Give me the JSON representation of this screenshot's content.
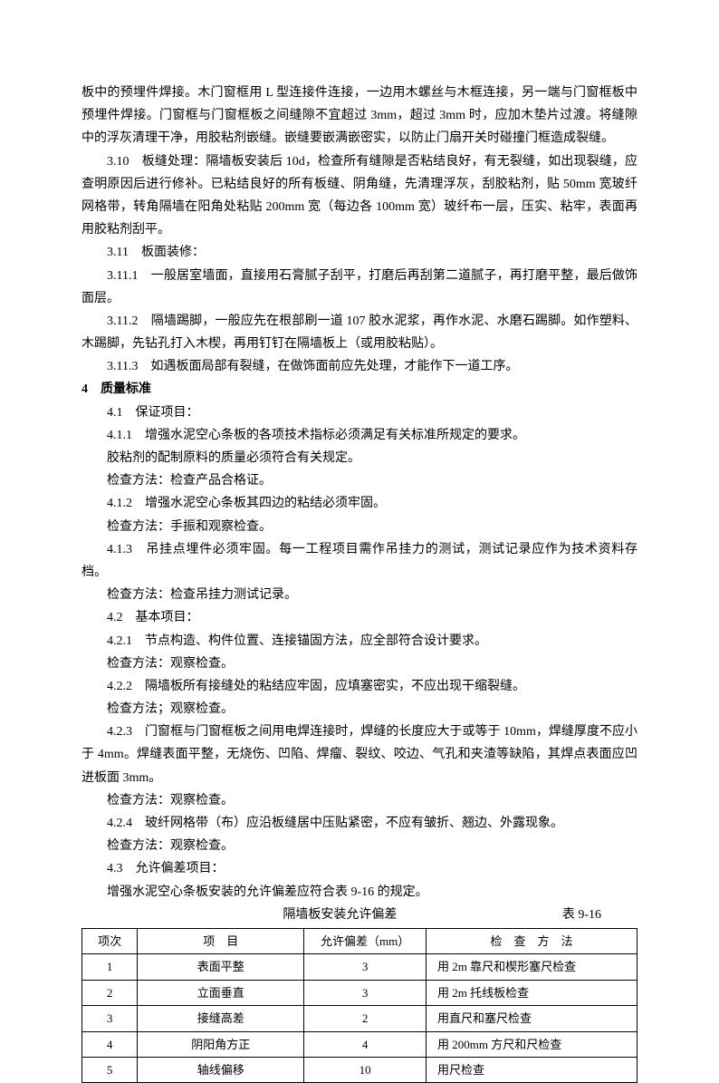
{
  "paragraphs": [
    {
      "text": "板中的预埋件焊接。木门窗框用 L 型连接件连接，一边用木螺丝与木框连接，另一端与门窗框板中预埋件焊接。门窗框与门窗框板之间缝隙不宜超过 3mm，超过 3mm 时，应加木垫片过渡。将缝隙中的浮灰清理干净，用胶粘剂嵌缝。嵌缝要嵌满嵌密实，以防止门扇开关时碰撞门框造成裂缝。",
      "indent": false
    },
    {
      "text": "3.10　板缝处理：隔墙板安装后 10d，检查所有缝隙是否粘结良好，有无裂缝，如出现裂缝，应查明原因后进行修补。已粘结良好的所有板缝、阴角缝，先清理浮灰，刮胶粘剂，贴 50mm 宽玻纤网格带，转角隔墙在阳角处粘贴 200mm 宽（每边各 100mm 宽）玻纤布一层，压实、粘牢，表面再用胶粘剂刮平。",
      "indent": true
    },
    {
      "text": "3.11　板面装修：",
      "indent": true
    },
    {
      "text": "3.11.1　一般居室墙面，直接用石膏腻子刮平，打磨后再刮第二道腻子，再打磨平整，最后做饰面层。",
      "indent": true
    },
    {
      "text": "3.11.2　隔墙踢脚，一般应先在根部刷一道 107 胶水泥浆，再作水泥、水磨石踢脚。如作塑料、木踢脚，先钻孔打入木楔，再用钉钉在隔墙板上（或用胶粘贴）。",
      "indent": true
    },
    {
      "text": "3.11.3　如遇板面局部有裂缝，在做饰面前应先处理，才能作下一道工序。",
      "indent": true
    },
    {
      "text": "4　质量标准",
      "indent": false,
      "bold": true
    },
    {
      "text": "4.1　保证项目：",
      "indent": true
    },
    {
      "text": "4.1.1　增强水泥空心条板的各项技术指标必须满足有关标准所规定的要求。",
      "indent": true
    },
    {
      "text": "胶粘剂的配制原料的质量必须符合有关规定。",
      "indent": true
    },
    {
      "text": "检查方法：检查产品合格证。",
      "indent": true
    },
    {
      "text": "4.1.2　增强水泥空心条板其四边的粘结必须牢固。",
      "indent": true
    },
    {
      "text": "检查方法：手振和观察检查。",
      "indent": true
    },
    {
      "text": "4.1.3　吊挂点埋件必须牢固。每一工程项目需作吊挂力的测试，测试记录应作为技术资料存档。",
      "indent": true
    },
    {
      "text": "检查方法：检查吊挂力测试记录。",
      "indent": true
    },
    {
      "text": "4.2　基本项目：",
      "indent": true
    },
    {
      "text": "4.2.1　节点构造、构件位置、连接锚固方法，应全部符合设计要求。",
      "indent": true
    },
    {
      "text": "检查方法：观察检查。",
      "indent": true
    },
    {
      "text": "4.2.2　隔墙板所有接缝处的粘结应牢固，应填塞密实，不应出现干缩裂缝。",
      "indent": true
    },
    {
      "text": "检查方法；观察检查。",
      "indent": true
    },
    {
      "text": "4.2.3　门窗框与门窗框板之间用电焊连接时，焊缝的长度应大于或等于 10mm，焊缝厚度不应小于 4mm。焊缝表面平整，无烧伤、凹陷、焊瘤、裂纹、咬边、气孔和夹渣等缺陷，其焊点表面应凹进板面 3mm。",
      "indent": true
    },
    {
      "text": "检查方法：观察检查。",
      "indent": true
    },
    {
      "text": "4.2.4　玻纤网格带（布）应沿板缝居中压贴紧密，不应有皱折、翘边、外露现象。",
      "indent": true
    },
    {
      "text": "检查方法：观察检查。",
      "indent": true
    },
    {
      "text": "4.3　允许偏差项目：",
      "indent": true
    },
    {
      "text": "增强水泥空心条板安装的允许偏差应符合表 9-16 的规定。",
      "indent": true
    }
  ],
  "table": {
    "title": "隔墙板安装允许偏差",
    "table_number": "表 9-16",
    "columns": [
      "项次",
      "项　目",
      "允许偏差（mm）",
      "检　查　方　法"
    ],
    "col_widths": [
      "10%",
      "30%",
      "22%",
      "38%"
    ],
    "rows": [
      [
        "1",
        "表面平整",
        "3",
        "用 2m 靠尺和楔形塞尺检查"
      ],
      [
        "2",
        "立面垂直",
        "3",
        "用 2m 托线板检查"
      ],
      [
        "3",
        "接缝高差",
        "2",
        "用直尺和塞尺检查"
      ],
      [
        "4",
        "阴阳角方正",
        "4",
        "用 200mm 方尺和尺检查"
      ],
      [
        "5",
        "轴线偏移",
        "10",
        "用尺检查"
      ]
    ]
  },
  "colors": {
    "text": "#000000",
    "background": "#ffffff",
    "border": "#000000"
  },
  "fonts": {
    "body_size": 14,
    "table_size": 13
  }
}
